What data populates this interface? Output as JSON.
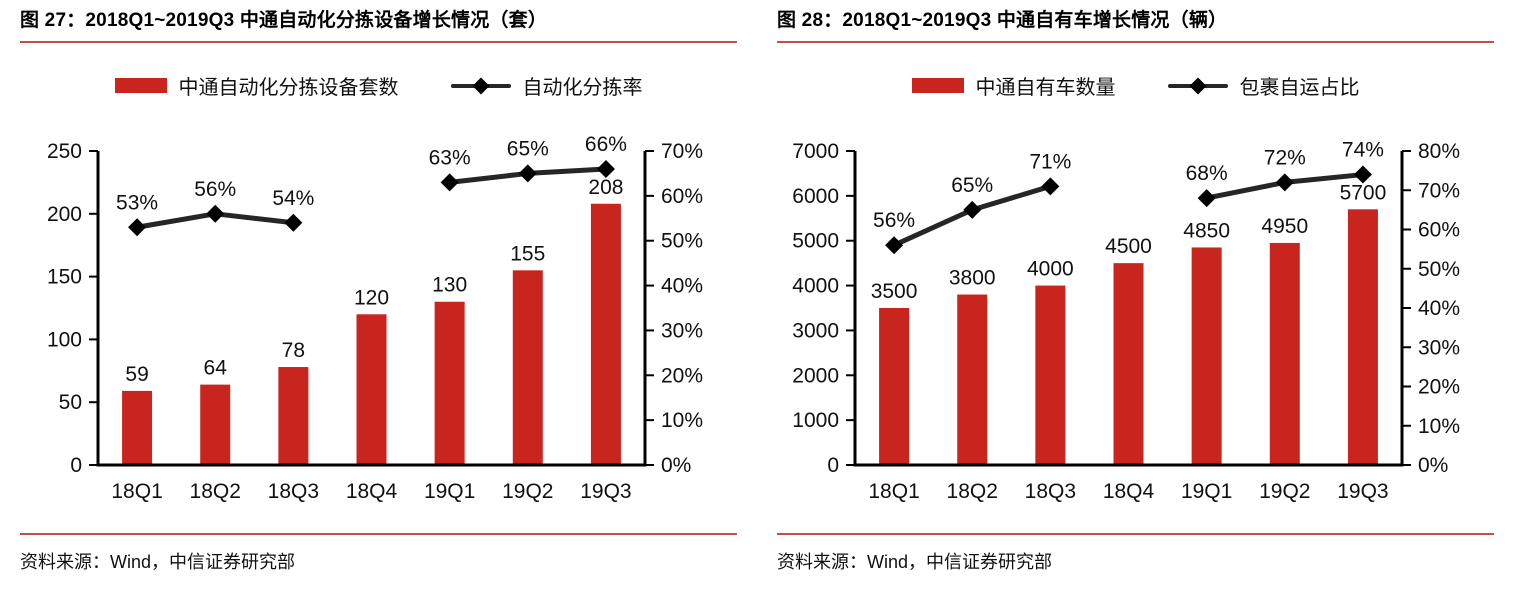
{
  "accent": {
    "bar_red": "#C9251F",
    "rule_red": "#C0504D",
    "line_black": "#262626",
    "marker_black": "#000000"
  },
  "figures": [
    {
      "title": "图 27：2018Q1~2019Q3 中通自动化分拣设备增长情况（套）",
      "legend_bar": "中通自动化分拣设备套数",
      "legend_line": "自动化分拣率",
      "source": "资料来源：Wind，中信证券研究部"
    },
    {
      "title": "图 28：2018Q1~2019Q3 中通自有车增长情况（辆）",
      "legend_bar": "中通自有车数量",
      "legend_line": "包裹自运占比",
      "source": "资料来源：Wind，中信证券研究部"
    }
  ],
  "chart_data": [
    {
      "type": "bar",
      "subtype": "combo-bar-line-dual-axis",
      "title": "图 27：2018Q1~2019Q3 中通自动化分拣设备增长情况（套）",
      "categories": [
        "18Q1",
        "18Q2",
        "18Q3",
        "18Q4",
        "19Q1",
        "19Q2",
        "19Q3"
      ],
      "series": [
        {
          "name": "中通自动化分拣设备套数",
          "type": "bar",
          "axis": "left",
          "values": [
            59,
            64,
            78,
            120,
            130,
            155,
            208
          ]
        },
        {
          "name": "自动化分拣率",
          "type": "line",
          "axis": "right",
          "unit": "%",
          "values": [
            53,
            56,
            54,
            null,
            63,
            65,
            66
          ]
        }
      ],
      "left_axis": {
        "min": 0,
        "max": 250,
        "step": 50
      },
      "right_axis": {
        "min": 0,
        "max": 70,
        "step": 10,
        "unit": "%"
      },
      "grid": false,
      "legend_position": "top",
      "data_labels": true
    },
    {
      "type": "bar",
      "subtype": "combo-bar-line-dual-axis",
      "title": "图 28：2018Q1~2019Q3 中通自有车增长情况（辆）",
      "categories": [
        "18Q1",
        "18Q2",
        "18Q3",
        "18Q4",
        "19Q1",
        "19Q2",
        "19Q3"
      ],
      "series": [
        {
          "name": "中通自有车数量",
          "type": "bar",
          "axis": "left",
          "values": [
            3500,
            3800,
            4000,
            4500,
            4850,
            4950,
            5700
          ]
        },
        {
          "name": "包裹自运占比",
          "type": "line",
          "axis": "right",
          "unit": "%",
          "values": [
            56,
            65,
            71,
            null,
            68,
            72,
            74
          ]
        }
      ],
      "left_axis": {
        "min": 0,
        "max": 7000,
        "step": 1000
      },
      "right_axis": {
        "min": 0,
        "max": 80,
        "step": 10,
        "unit": "%"
      },
      "grid": false,
      "legend_position": "top",
      "data_labels": true
    }
  ]
}
